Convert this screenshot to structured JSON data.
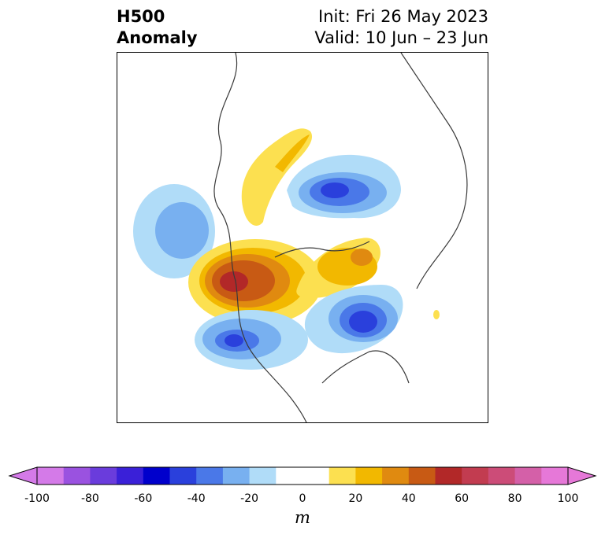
{
  "header": {
    "title_line1": "H500",
    "title_line2": "Anomaly",
    "init": "Init: Fri 26 May 2023",
    "valid": "Valid: 10 Jun – 23 Jun"
  },
  "colorbar": {
    "unit": "m",
    "min": -100,
    "max": 100,
    "step": 10,
    "ticks": [
      -100,
      -80,
      -60,
      -40,
      -20,
      0,
      20,
      40,
      60,
      80,
      100
    ],
    "colors": [
      "#d47ae8",
      "#9a52e0",
      "#6a3cdc",
      "#3a20d8",
      "#0000cc",
      "#2a40dc",
      "#4a78e8",
      "#78b0f0",
      "#b0dcf8",
      "#ffffff",
      "#ffffff",
      "#fce050",
      "#f2b800",
      "#e08a10",
      "#c85a14",
      "#b22828",
      "#c23c50",
      "#cc4c78",
      "#d460a8",
      "#e678d8"
    ]
  },
  "map": {
    "region": "North America / North Pacific / Arctic",
    "features": [
      {
        "name": "pacific-low",
        "sign": "negative",
        "peak_m": -30
      },
      {
        "name": "alaska-arc-ridge",
        "sign": "positive",
        "peak_m": 20
      },
      {
        "name": "western-canada-ridge",
        "sign": "positive",
        "peak_m": 60
      },
      {
        "name": "hudson-baffin-ridge",
        "sign": "positive",
        "peak_m": 40
      },
      {
        "name": "siberian-low",
        "sign": "negative",
        "peak_m": -50
      },
      {
        "name": "southwest-us-low",
        "sign": "negative",
        "peak_m": -50
      },
      {
        "name": "northeast-low",
        "sign": "negative",
        "peak_m": -60
      }
    ]
  }
}
